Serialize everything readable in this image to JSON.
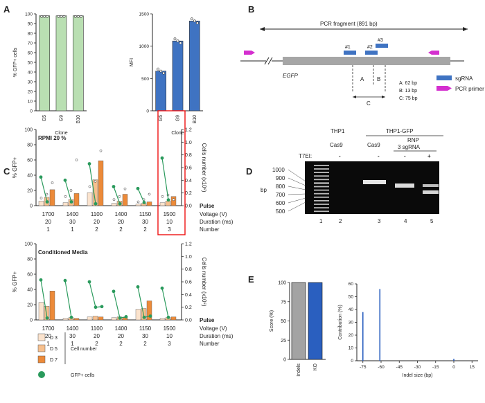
{
  "panels": {
    "A": "A",
    "B": "B",
    "C": "C",
    "D": "D",
    "E": "E"
  },
  "panel_a": [
    {
      "type": "bar",
      "ylabel": "% GFP+ cells",
      "xlabel": "Clone",
      "categories": [
        "G5",
        "G9",
        "B10"
      ],
      "values": [
        98,
        98,
        98
      ],
      "ylim": [
        0,
        100
      ],
      "yticks": [
        0,
        10,
        20,
        30,
        40,
        50,
        60,
        70,
        80,
        90,
        100
      ],
      "color": "#b9dfb2"
    },
    {
      "type": "bar",
      "ylabel": "MFI",
      "xlabel": "Clone",
      "categories": [
        "G5",
        "G9",
        "B10"
      ],
      "values": [
        615,
        1080,
        1390
      ],
      "ylim": [
        0,
        1500
      ],
      "yticks": [
        0,
        500,
        1000,
        1500
      ],
      "color": "#3f73c2"
    }
  ],
  "panel_b": {
    "fragment": "PCR fragment (891 bp)",
    "gene": "EGFP",
    "sgrnas": [
      "#1",
      "#2",
      "#3"
    ],
    "distances": [
      "A",
      "B",
      "C"
    ],
    "legend": {
      "sgrna": "sgRNA",
      "primer": "PCR primer"
    },
    "sizes": [
      "A: 62 bp",
      "B: 13 bp",
      "C: 75 bp"
    ]
  },
  "panel_c": {
    "y_left": "% GFP+",
    "y_right": "Cells number (x10⁶)",
    "pulse": "Pulse",
    "row_labels": [
      "Voltage (V)",
      "Duration (ms)",
      "Number"
    ],
    "voltage": [
      "1700",
      "1400",
      "1100",
      "1400",
      "1150",
      "1500"
    ],
    "duration": [
      "20",
      "30",
      "20",
      "20",
      "30",
      "10"
    ],
    "number": [
      "1",
      "1",
      "2",
      "2",
      "2",
      "3"
    ],
    "left_ticks": [
      "0",
      "20",
      "40",
      "60",
      "80",
      "100"
    ],
    "right_ticks": [
      "0.0",
      "0.2",
      "0.4",
      "0.6",
      "0.8",
      "1.0",
      "1.2"
    ],
    "charts": [
      {
        "title": "RPMI 20 %",
        "bars": [
          [
            6,
            11,
            21
          ],
          [
            4,
            8,
            16
          ],
          [
            17,
            34,
            59
          ],
          [
            3,
            6,
            15
          ],
          [
            2,
            3,
            5
          ],
          [
            4,
            6,
            12
          ]
        ],
        "gfp": [
          [
            0.45,
            0.06
          ],
          [
            0.4,
            0.06
          ],
          [
            0.66,
            0.03
          ],
          [
            0.3,
            0.03
          ],
          [
            0.27,
            0.05
          ],
          [
            0.75,
            0.09
          ]
        ],
        "dots": [
          [
            10,
            15,
            30
          ],
          [
            12,
            20,
            60
          ],
          [
            25,
            32,
            72
          ],
          [
            8,
            12,
            22
          ],
          [
            5,
            8,
            15
          ],
          [
            12,
            14,
            8
          ]
        ],
        "highlight": 5
      },
      {
        "title": "Conditioned Media",
        "bars": [
          [
            23,
            18,
            38
          ],
          [
            2,
            3,
            2
          ],
          [
            4,
            5,
            4
          ],
          [
            3,
            4,
            3
          ],
          [
            14,
            15,
            25
          ],
          [
            2,
            3,
            4
          ]
        ],
        "gfp": [
          [
            0.63,
            0.03
          ],
          [
            0.62,
            0.04
          ],
          [
            0.6,
            0.2,
            0.21
          ],
          [
            0.45,
            0.03,
            0.05
          ],
          [
            0.52,
            0.04,
            0.06
          ],
          [
            0.5,
            0.04
          ]
        ],
        "dots": [],
        "highlight": null
      }
    ],
    "legend": {
      "days": [
        "D 3",
        "D 5",
        "D 7"
      ],
      "cell": "Cell number",
      "gfp": "GFP+ cells"
    },
    "colors": [
      "#fbe3cd",
      "#f7c08e",
      "#ec8a39"
    ]
  },
  "panel_d": {
    "col_headers": {
      "thp1": "THP1",
      "thp1gfp": "THP1-GFP",
      "rnp": "RNP",
      "sgrna": "3 sgRNA"
    },
    "conditions": [
      "Cas9",
      "Cas9"
    ],
    "t7ei_label": "T7EI:",
    "t7ei": [
      "-",
      "-",
      "-",
      "+"
    ],
    "bp_label": "bp",
    "ladder": [
      "1000",
      "900",
      "800",
      "700",
      "600",
      "500"
    ],
    "lanes": [
      "1",
      "2",
      "3",
      "4",
      "5"
    ]
  },
  "panel_e": {
    "score": {
      "type": "bar",
      "ylabel": "Score (%)",
      "categories": [
        "Indels",
        "KO"
      ],
      "values": [
        100,
        100
      ],
      "ylim": [
        0,
        100
      ],
      "yticks": [
        0,
        25,
        50,
        75,
        100
      ],
      "colors": [
        "#a3a3a3",
        "#2a5fbf"
      ]
    },
    "contribution": {
      "type": "bar",
      "ylabel": "Contribution (%)",
      "xlabel": "Indel size (bp)",
      "xticks": [
        -75,
        -60,
        -45,
        -30,
        -15,
        0,
        15
      ],
      "yticks": [
        0,
        10,
        20,
        30,
        40,
        50,
        60
      ],
      "ylim": [
        0,
        60
      ],
      "x": [
        -75,
        -61,
        0
      ],
      "values": [
        38,
        56,
        1.5
      ]
    }
  }
}
